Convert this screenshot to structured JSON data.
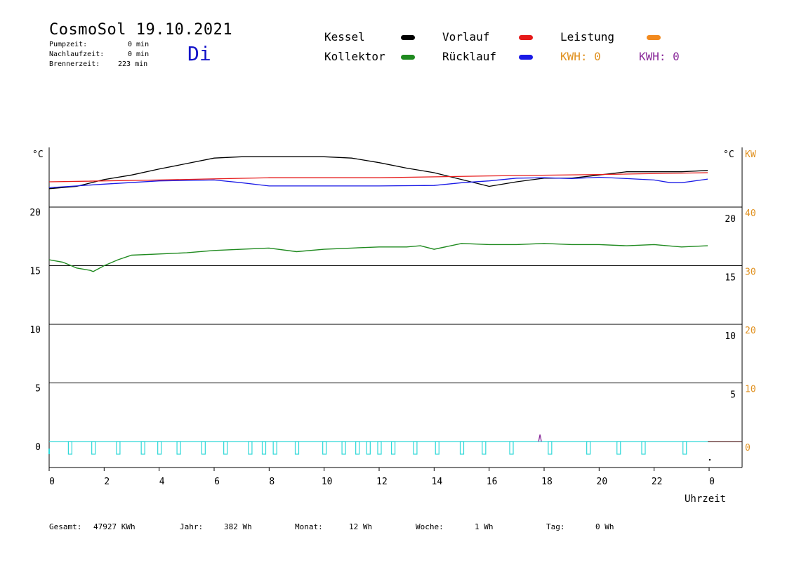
{
  "header": {
    "title": "CosmoSol 19.10.2021",
    "weekday": "Di",
    "stats": [
      {
        "label": "Pumpzeit:",
        "value": "0 min"
      },
      {
        "label": "Nachlaufzeit:",
        "value": "0 min"
      },
      {
        "label": "Brennerzeit:",
        "value": "223 min"
      }
    ]
  },
  "legend": {
    "items": [
      {
        "label": "Kessel",
        "color": "#000000"
      },
      {
        "label": "Vorlauf",
        "color": "#e61a1a"
      },
      {
        "label": "Leistung",
        "color": "#f28a1e"
      },
      {
        "label": "Kollektor",
        "color": "#1f8a1f"
      },
      {
        "label": "Rücklauf",
        "color": "#1a1ae6"
      }
    ],
    "kwh_orange": "KWH: 0",
    "kwh_purple": "KWH: 0",
    "kwh_orange_color": "#e0901e",
    "kwh_purple_color": "#8a2a9a"
  },
  "footer": {
    "items": [
      {
        "label": "Gesamt:",
        "value": "47927 KWh"
      },
      {
        "label": "Jahr:",
        "value": "382 Wh"
      },
      {
        "label": "Monat:",
        "value": "12 Wh"
      },
      {
        "label": "Woche:",
        "value": "1 Wh"
      },
      {
        "label": "Tag:",
        "value": "0 Wh"
      }
    ]
  },
  "chart_data": {
    "type": "line",
    "xlabel": "Uhrzeit",
    "x_ticks": [
      "0",
      "2",
      "4",
      "6",
      "8",
      "10",
      "12",
      "14",
      "16",
      "18",
      "20",
      "22",
      "0"
    ],
    "x_range_hours": [
      0,
      24
    ],
    "left_axis": {
      "unit": "°C",
      "ticks": [
        "0",
        "5",
        "10",
        "15",
        "20"
      ],
      "range": [
        0,
        20
      ]
    },
    "right_axis": {
      "unit": "°C",
      "ticks": [
        "5",
        "10",
        "15",
        "20"
      ]
    },
    "power_axis": {
      "unit": "KW",
      "ticks": [
        "0",
        "10",
        "20",
        "30",
        "40"
      ],
      "range": [
        0,
        40
      ]
    },
    "upper_panel": {
      "note": "temperature band above the 20 °C gridline (values shown as relative level 0-1 within band)",
      "series": [
        {
          "name": "Kessel",
          "color": "#000000",
          "points": [
            [
              0,
              0.25
            ],
            [
              1,
              0.3
            ],
            [
              2,
              0.45
            ],
            [
              3,
              0.55
            ],
            [
              4,
              0.68
            ],
            [
              5,
              0.8
            ],
            [
              6,
              0.92
            ],
            [
              7,
              0.95
            ],
            [
              8,
              0.95
            ],
            [
              9,
              0.95
            ],
            [
              10,
              0.95
            ],
            [
              11,
              0.92
            ],
            [
              12,
              0.82
            ],
            [
              13,
              0.7
            ],
            [
              14,
              0.6
            ],
            [
              15,
              0.45
            ],
            [
              16,
              0.3
            ],
            [
              17,
              0.4
            ],
            [
              18,
              0.48
            ],
            [
              19,
              0.48
            ],
            [
              20,
              0.55
            ],
            [
              21,
              0.62
            ],
            [
              22,
              0.62
            ],
            [
              23,
              0.62
            ],
            [
              23.95,
              0.65
            ]
          ]
        },
        {
          "name": "Vorlauf",
          "color": "#e61a1a",
          "points": [
            [
              0,
              0.4
            ],
            [
              4,
              0.44
            ],
            [
              8,
              0.49
            ],
            [
              12,
              0.49
            ],
            [
              16,
              0.53
            ],
            [
              20,
              0.56
            ],
            [
              23.95,
              0.6
            ]
          ]
        },
        {
          "name": "Rücklauf",
          "color": "#1a1ae6",
          "points": [
            [
              0,
              0.27
            ],
            [
              2,
              0.35
            ],
            [
              4,
              0.42
            ],
            [
              6,
              0.44
            ],
            [
              7,
              0.38
            ],
            [
              8,
              0.31
            ],
            [
              10,
              0.31
            ],
            [
              12,
              0.31
            ],
            [
              14,
              0.32
            ],
            [
              15,
              0.38
            ],
            [
              16,
              0.42
            ],
            [
              17,
              0.48
            ],
            [
              18,
              0.49
            ],
            [
              19,
              0.47
            ],
            [
              20,
              0.5
            ],
            [
              21,
              0.47
            ],
            [
              22,
              0.44
            ],
            [
              22.6,
              0.38
            ],
            [
              23,
              0.38
            ],
            [
              23.95,
              0.46
            ]
          ]
        }
      ]
    },
    "series": [
      {
        "name": "Kollektor",
        "color": "#1f8a1f",
        "points": [
          [
            0,
            15.5
          ],
          [
            0.5,
            15.3
          ],
          [
            1,
            14.8
          ],
          [
            1.5,
            14.6
          ],
          [
            1.6,
            14.5
          ],
          [
            2,
            15
          ],
          [
            2.5,
            15.5
          ],
          [
            3,
            15.9
          ],
          [
            4,
            16
          ],
          [
            5,
            16.1
          ],
          [
            6,
            16.3
          ],
          [
            7,
            16.4
          ],
          [
            8,
            16.5
          ],
          [
            9,
            16.2
          ],
          [
            10,
            16.4
          ],
          [
            11,
            16.5
          ],
          [
            12,
            16.6
          ],
          [
            13,
            16.6
          ],
          [
            13.5,
            16.7
          ],
          [
            14,
            16.4
          ],
          [
            15,
            16.9
          ],
          [
            16,
            16.8
          ],
          [
            17,
            16.8
          ],
          [
            18,
            16.9
          ],
          [
            19,
            16.8
          ],
          [
            20,
            16.8
          ],
          [
            21,
            16.7
          ],
          [
            22,
            16.8
          ],
          [
            23,
            16.6
          ],
          [
            23.95,
            16.7
          ]
        ]
      },
      {
        "name": "Kessel",
        "color": "#000000",
        "points": [
          [
            23.95,
            -1.1
          ]
        ]
      },
      {
        "name": "Leistung",
        "color": "#e0901e",
        "points": [
          [
            0,
            0
          ],
          [
            23.95,
            0
          ]
        ]
      }
    ],
    "pump_signal": {
      "color": "#2ed8d8",
      "baseline": 0,
      "pulse_hours": [
        0.75,
        1.6,
        2.5,
        3.4,
        4.0,
        4.7,
        5.6,
        6.4,
        7.3,
        7.8,
        8.2,
        9.0,
        10.0,
        10.7,
        11.2,
        11.6,
        12.0,
        12.5,
        13.3,
        14.1,
        15.0,
        15.8,
        16.8,
        18.2,
        19.6,
        20.7,
        21.6,
        23.1
      ]
    },
    "purple_marker_hour": 17.85
  }
}
